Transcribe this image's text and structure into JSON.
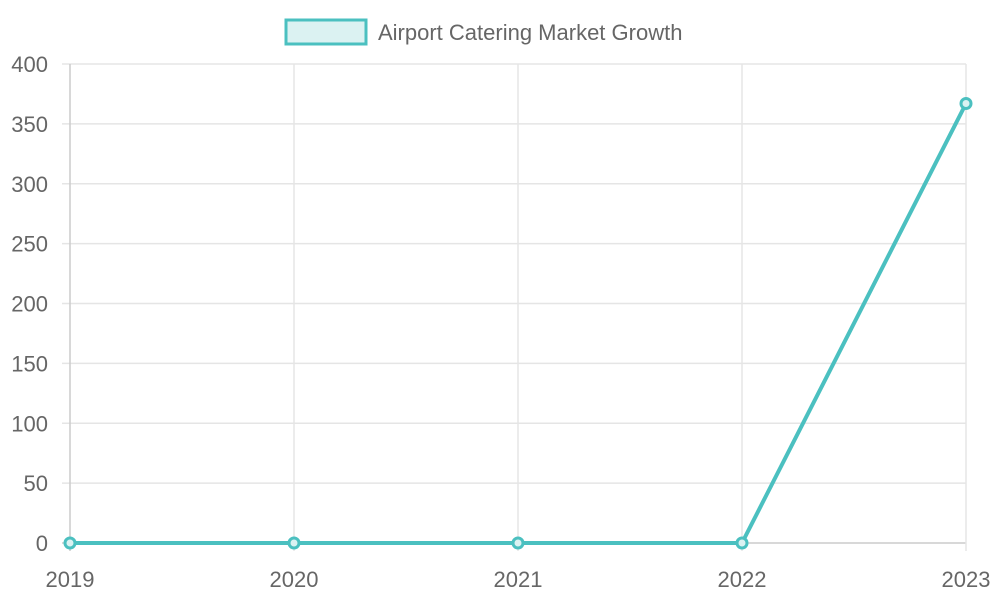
{
  "chart_data": {
    "type": "line",
    "title": "",
    "xlabel": "",
    "ylabel": "",
    "categories": [
      "2019",
      "2020",
      "2021",
      "2022",
      "2023"
    ],
    "series": [
      {
        "name": "Airport Catering Market Growth",
        "values": [
          0,
          0,
          0,
          0,
          367
        ],
        "color": "#4bc0c0",
        "fill_color": "#dbf2f2"
      }
    ],
    "ylim": [
      0,
      400
    ],
    "y_ticks": [
      0,
      50,
      100,
      150,
      200,
      250,
      300,
      350,
      400
    ],
    "grid": true,
    "legend_position": "top-center",
    "grid_color": "#e5e5e5",
    "text_color": "#666666"
  }
}
